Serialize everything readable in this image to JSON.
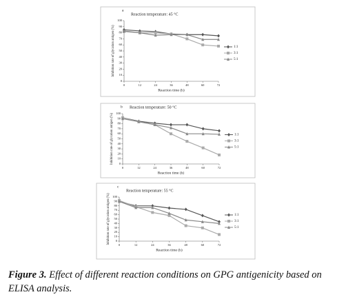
{
  "chart_data": [
    {
      "type": "line",
      "panel_label": "a",
      "title": "Reaction temperature: 45 °C",
      "x_label": "Reaction time (h)",
      "y_label": "Inhibition rate of glycation antigen (%)",
      "x": [
        0,
        12,
        24,
        36,
        48,
        60,
        72
      ],
      "xlim": [
        0,
        72
      ],
      "xticks": [
        0,
        12,
        24,
        36,
        48,
        60,
        72
      ],
      "ylim": [
        0,
        100
      ],
      "yticks": [
        0,
        10,
        20,
        30,
        40,
        50,
        60,
        70,
        80,
        90,
        100
      ],
      "series": [
        {
          "name": "1:1",
          "color": "#555555",
          "marker": "diamond",
          "values": [
            85,
            83,
            82,
            78,
            77,
            77,
            75
          ]
        },
        {
          "name": "3:1",
          "color": "#aaaaaa",
          "marker": "square",
          "values": [
            82,
            80,
            80,
            78,
            70,
            60,
            58
          ]
        },
        {
          "name": "5:1",
          "color": "#888888",
          "marker": "triangle",
          "values": [
            83,
            80,
            76,
            77,
            77,
            69,
            69
          ]
        }
      ]
    },
    {
      "type": "line",
      "panel_label": "b",
      "title": "Reaction temperature: 50 °C",
      "x_label": "Reaction time (h)",
      "y_label": "Inhibition rate of glycation antigen (%)",
      "x": [
        0,
        12,
        24,
        36,
        48,
        60,
        72
      ],
      "xlim": [
        0,
        72
      ],
      "xticks": [
        0,
        12,
        24,
        36,
        48,
        60,
        72
      ],
      "ylim": [
        0,
        100
      ],
      "yticks": [
        0,
        10,
        20,
        30,
        40,
        50,
        60,
        70,
        80,
        90,
        100
      ],
      "series": [
        {
          "name": "1:1",
          "color": "#555555",
          "marker": "diamond",
          "values": [
            92,
            85,
            81,
            78,
            78,
            70,
            66
          ]
        },
        {
          "name": "3:1",
          "color": "#aaaaaa",
          "marker": "square",
          "values": [
            92,
            84,
            78,
            60,
            45,
            32,
            18
          ]
        },
        {
          "name": "5:1",
          "color": "#888888",
          "marker": "triangle",
          "values": [
            90,
            84,
            78,
            72,
            60,
            60,
            59
          ]
        }
      ]
    },
    {
      "type": "line",
      "panel_label": "c",
      "title": "Reaction temperature: 55 °C",
      "x_label": "Reaction time (h)",
      "y_label": "Inhibition rate of glycation antigen (%)",
      "x": [
        0,
        12,
        24,
        36,
        48,
        60,
        72
      ],
      "xlim": [
        0,
        72
      ],
      "xticks": [
        0,
        12,
        24,
        36,
        48,
        60,
        72
      ],
      "ylim": [
        0,
        100
      ],
      "yticks": [
        0,
        10,
        20,
        30,
        40,
        50,
        60,
        70,
        80,
        90,
        100
      ],
      "series": [
        {
          "name": "1:1",
          "color": "#555555",
          "marker": "diamond",
          "values": [
            90,
            80,
            80,
            75,
            72,
            58,
            44
          ]
        },
        {
          "name": "3:1",
          "color": "#aaaaaa",
          "marker": "square",
          "values": [
            92,
            78,
            65,
            58,
            35,
            30,
            15
          ]
        },
        {
          "name": "5:1",
          "color": "#888888",
          "marker": "triangle",
          "values": [
            90,
            76,
            76,
            63,
            48,
            44,
            40
          ]
        }
      ]
    }
  ],
  "caption": {
    "label": "Figure 3.",
    "text": "Effect of different reaction conditions on GPG antigenicity based on ELISA analysis."
  }
}
